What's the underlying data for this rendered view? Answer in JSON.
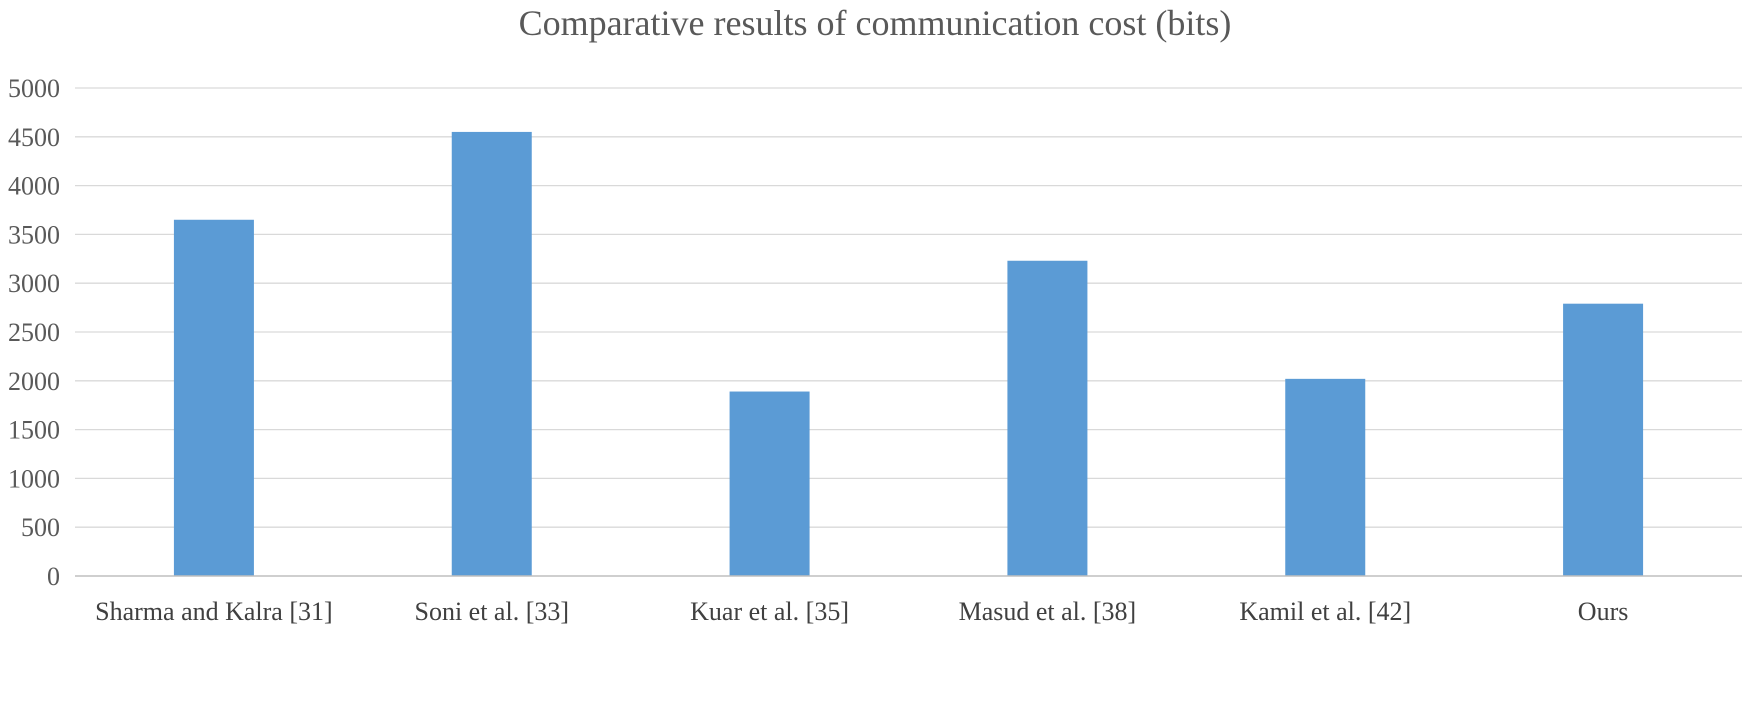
{
  "chart_data": {
    "type": "bar",
    "title": "Comparative results of  communication cost (bits)",
    "xlabel": "",
    "ylabel": "",
    "categories": [
      "Sharma and Kalra [31]",
      "Soni et al. [33]",
      "Kuar et al. [35]",
      "Masud et al. [38]",
      "Kamil et al. [42]",
      "Ours"
    ],
    "series": [
      {
        "name": "Communication cost (bits)",
        "values": [
          3650,
          4550,
          1890,
          3230,
          2020,
          2790
        ]
      }
    ],
    "ylim": [
      0,
      5000
    ],
    "yticks": [
      0,
      500,
      1000,
      1500,
      2000,
      2500,
      3000,
      3500,
      4000,
      4500,
      5000
    ],
    "grid": true,
    "legend": "none",
    "colors": {
      "bar": "#5b9bd5",
      "grid": "#d9d9d9",
      "text": "#595959"
    }
  }
}
